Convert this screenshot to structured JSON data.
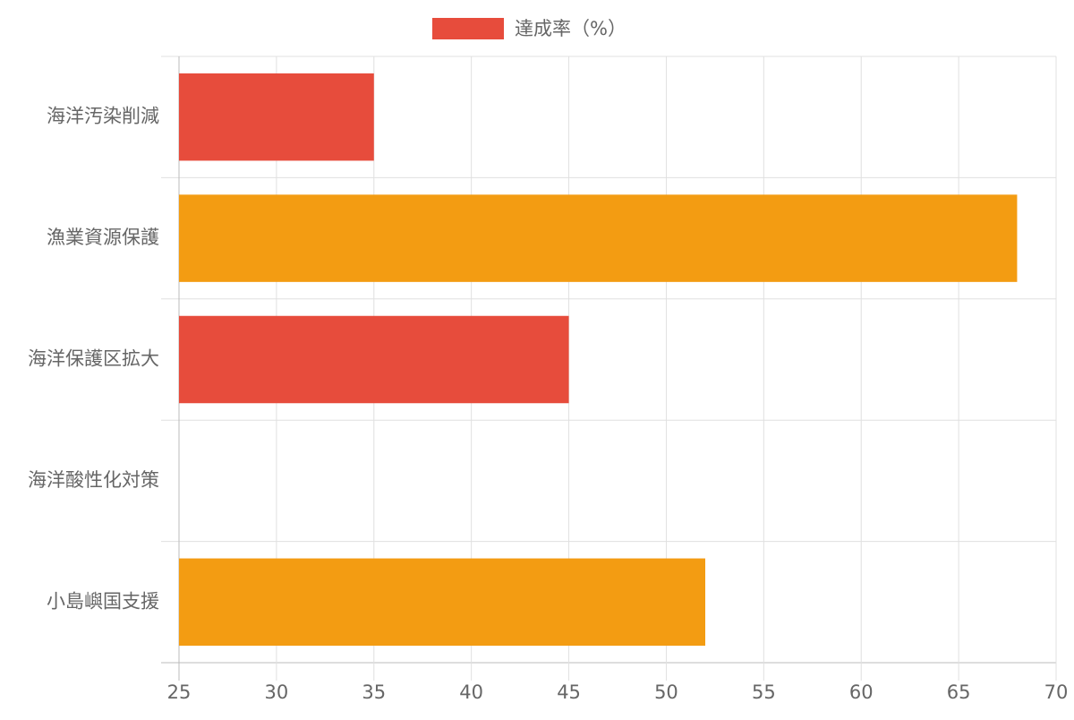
{
  "chart_data": {
    "type": "bar",
    "orientation": "horizontal",
    "categories": [
      "海洋汚染削減",
      "漁業資源保護",
      "海洋保護区拡大",
      "海洋酸性化対策",
      "小島嶼国支援"
    ],
    "series": [
      {
        "name": "達成率（%）",
        "color": "#e74c3c",
        "colors": [
          "#e74c3c",
          "#f39c12",
          "#e74c3c",
          "#e74c3c",
          "#f39c12"
        ],
        "values": [
          35,
          68,
          45,
          25,
          52
        ]
      }
    ],
    "xlim": [
      25,
      70
    ],
    "xticks": [
      25,
      30,
      35,
      40,
      45,
      50,
      55,
      60,
      65,
      70
    ],
    "grid": true,
    "legend": "top"
  }
}
